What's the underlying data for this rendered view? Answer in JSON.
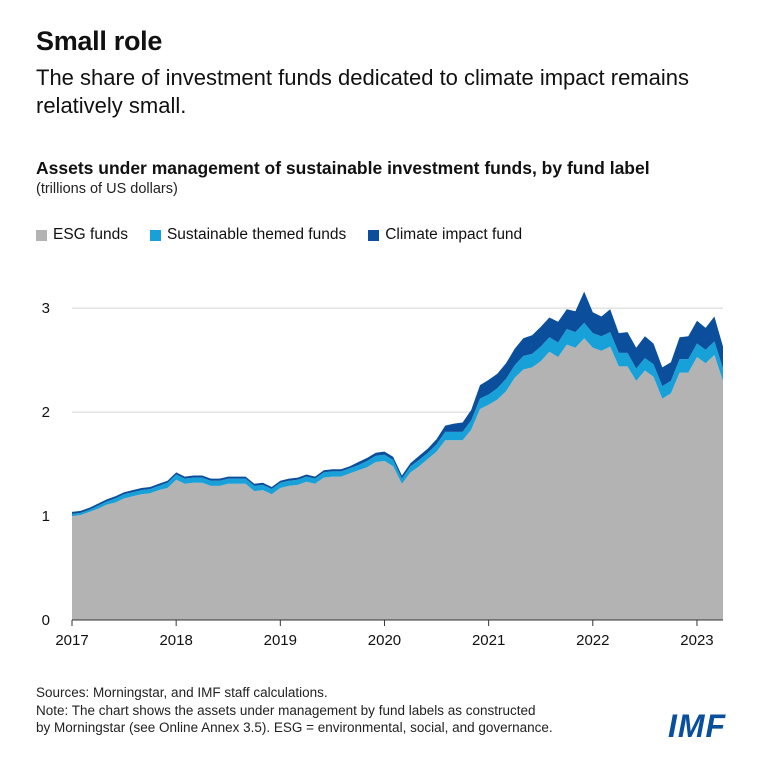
{
  "title": "Small role",
  "subtitle": "The share of investment funds dedicated to climate impact remains relatively small.",
  "logo_text": "IMF",
  "notes": {
    "sources": "Sources: Morningstar, and IMF staff calculations.",
    "note_line1": "Note: The chart shows the assets under management by fund labels as constructed",
    "note_line2": "by Morningstar (see Online Annex 3.5). ESG = environmental, social, and governance."
  },
  "chart_data": {
    "type": "area",
    "stacked": true,
    "title": "Assets under management of sustainable investment funds, by fund label",
    "ylabel": "(trillions of US dollars)",
    "xlabel": "",
    "xlim": [
      2017.0,
      2023.25
    ],
    "ylim": [
      0,
      3.3
    ],
    "y_ticks": [
      {
        "value": 0,
        "label": "0"
      },
      {
        "value": 1,
        "label": "1"
      },
      {
        "value": 2,
        "label": "2"
      },
      {
        "value": 3,
        "label": "3"
      }
    ],
    "x_ticks": [
      {
        "value": 2017,
        "label": "2017"
      },
      {
        "value": 2018,
        "label": "2018"
      },
      {
        "value": 2019,
        "label": "2019"
      },
      {
        "value": 2020,
        "label": "2020"
      },
      {
        "value": 2021,
        "label": "2021"
      },
      {
        "value": 2022,
        "label": "2022"
      },
      {
        "value": 2023,
        "label": "2023"
      }
    ],
    "legend_position": "top-left",
    "x": [
      2017.0,
      2017.083,
      2017.167,
      2017.25,
      2017.333,
      2017.417,
      2017.5,
      2017.583,
      2017.667,
      2017.75,
      2017.833,
      2017.917,
      2018.0,
      2018.083,
      2018.167,
      2018.25,
      2018.333,
      2018.417,
      2018.5,
      2018.583,
      2018.667,
      2018.75,
      2018.833,
      2018.917,
      2019.0,
      2019.083,
      2019.167,
      2019.25,
      2019.333,
      2019.417,
      2019.5,
      2019.583,
      2019.667,
      2019.75,
      2019.833,
      2019.917,
      2020.0,
      2020.083,
      2020.167,
      2020.25,
      2020.333,
      2020.417,
      2020.5,
      2020.583,
      2020.667,
      2020.75,
      2020.833,
      2020.917,
      2021.0,
      2021.083,
      2021.167,
      2021.25,
      2021.333,
      2021.417,
      2021.5,
      2021.583,
      2021.667,
      2021.75,
      2021.833,
      2021.917,
      2022.0,
      2022.083,
      2022.167,
      2022.25,
      2022.333,
      2022.417,
      2022.5,
      2022.583,
      2022.667,
      2022.75,
      2022.833,
      2022.917,
      2023.0,
      2023.083,
      2023.167,
      2023.25
    ],
    "series": [
      {
        "name": "ESG funds",
        "color": "#b3b3b3",
        "values": [
          1.0,
          1.01,
          1.04,
          1.07,
          1.11,
          1.13,
          1.17,
          1.19,
          1.21,
          1.22,
          1.25,
          1.27,
          1.35,
          1.31,
          1.32,
          1.32,
          1.29,
          1.29,
          1.31,
          1.31,
          1.31,
          1.24,
          1.25,
          1.21,
          1.27,
          1.29,
          1.3,
          1.33,
          1.31,
          1.37,
          1.38,
          1.38,
          1.41,
          1.44,
          1.47,
          1.52,
          1.53,
          1.48,
          1.31,
          1.42,
          1.48,
          1.55,
          1.62,
          1.73,
          1.73,
          1.73,
          1.83,
          2.03,
          2.07,
          2.12,
          2.2,
          2.33,
          2.41,
          2.43,
          2.49,
          2.58,
          2.53,
          2.65,
          2.62,
          2.71,
          2.62,
          2.59,
          2.63,
          2.44,
          2.44,
          2.3,
          2.4,
          2.34,
          2.13,
          2.18,
          2.38,
          2.38,
          2.53,
          2.47,
          2.55,
          2.3
        ]
      },
      {
        "name": "Sustainable themed funds",
        "color": "#18a0d8",
        "values": [
          0.02,
          0.02,
          0.02,
          0.03,
          0.03,
          0.04,
          0.04,
          0.04,
          0.04,
          0.04,
          0.04,
          0.05,
          0.05,
          0.05,
          0.05,
          0.05,
          0.05,
          0.05,
          0.05,
          0.05,
          0.05,
          0.05,
          0.05,
          0.05,
          0.05,
          0.05,
          0.05,
          0.05,
          0.05,
          0.05,
          0.05,
          0.05,
          0.05,
          0.05,
          0.06,
          0.06,
          0.06,
          0.06,
          0.05,
          0.06,
          0.06,
          0.06,
          0.07,
          0.08,
          0.08,
          0.08,
          0.09,
          0.1,
          0.1,
          0.11,
          0.12,
          0.12,
          0.13,
          0.13,
          0.14,
          0.14,
          0.14,
          0.15,
          0.15,
          0.15,
          0.14,
          0.14,
          0.14,
          0.13,
          0.13,
          0.12,
          0.12,
          0.12,
          0.12,
          0.12,
          0.13,
          0.13,
          0.13,
          0.13,
          0.13,
          0.12
        ]
      },
      {
        "name": "Climate impact fund",
        "color": "#0b4f9c",
        "values": [
          0.02,
          0.02,
          0.02,
          0.02,
          0.02,
          0.02,
          0.02,
          0.02,
          0.02,
          0.02,
          0.02,
          0.02,
          0.02,
          0.02,
          0.02,
          0.02,
          0.02,
          0.02,
          0.02,
          0.02,
          0.02,
          0.02,
          0.02,
          0.02,
          0.02,
          0.02,
          0.02,
          0.02,
          0.02,
          0.02,
          0.02,
          0.02,
          0.02,
          0.03,
          0.03,
          0.03,
          0.03,
          0.03,
          0.03,
          0.03,
          0.04,
          0.04,
          0.05,
          0.06,
          0.08,
          0.09,
          0.1,
          0.13,
          0.14,
          0.14,
          0.15,
          0.16,
          0.17,
          0.18,
          0.19,
          0.19,
          0.2,
          0.19,
          0.2,
          0.3,
          0.2,
          0.19,
          0.22,
          0.19,
          0.2,
          0.2,
          0.21,
          0.2,
          0.18,
          0.18,
          0.21,
          0.22,
          0.22,
          0.21,
          0.24,
          0.21
        ]
      }
    ]
  }
}
